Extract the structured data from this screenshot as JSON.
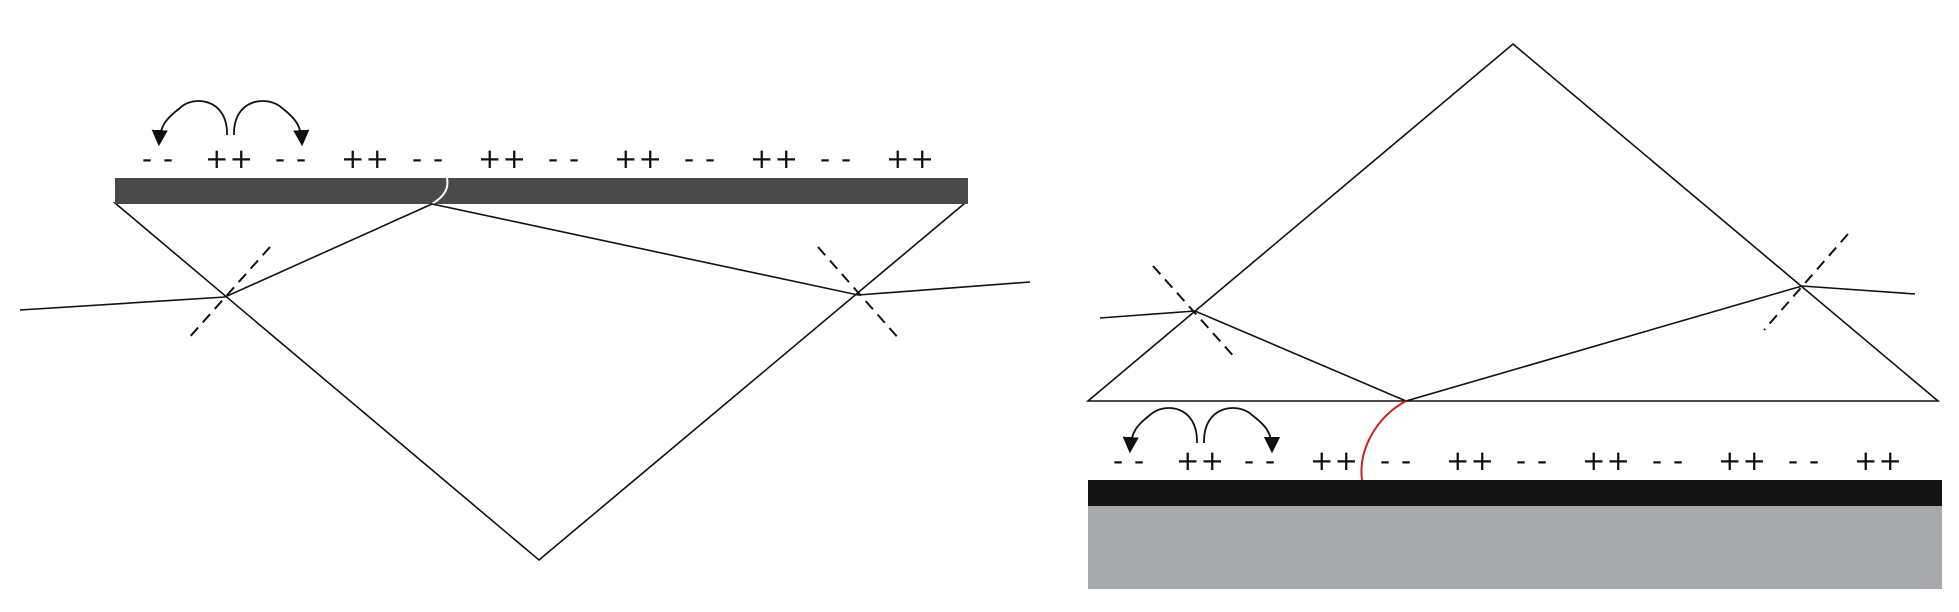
{
  "panels": [
    {
      "id": "left",
      "charges": [
        "- -",
        "++",
        "- -",
        "++",
        "- -",
        "++",
        "- -",
        "++",
        "- -",
        "++",
        "- -",
        "++"
      ]
    },
    {
      "id": "right",
      "charges": [
        "- -",
        "++",
        "- -",
        "++",
        "- -",
        "++",
        "- -",
        "++",
        "- -",
        "++",
        "- -",
        "++"
      ]
    }
  ],
  "colors": {
    "prism_fill": "#d1d4d6",
    "metal_film_left": "#4a4a4a",
    "metal_film_right": "#141414",
    "substrate": "#a8a9ab",
    "evanescent_left": "#ffffff",
    "evanescent_right": "#cc2020",
    "lines": "#111111"
  }
}
